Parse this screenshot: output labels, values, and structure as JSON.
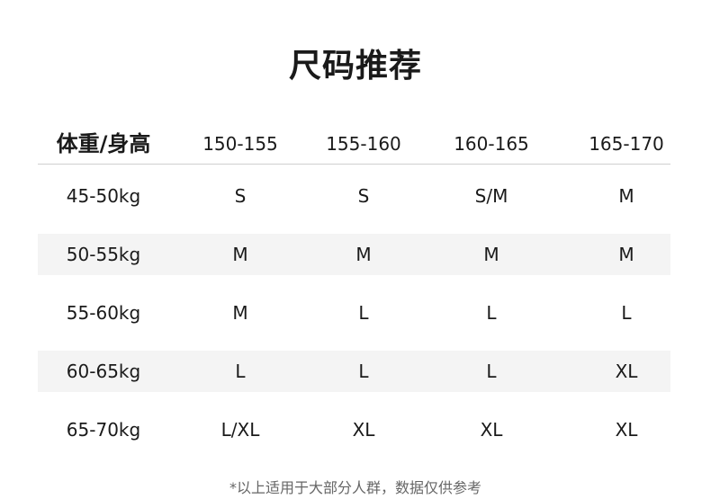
{
  "title": "尺码推荐",
  "table": {
    "header": [
      "体重/身高",
      "150-155",
      "155-160",
      "160-165",
      "165-170"
    ],
    "rows": [
      [
        "45-50kg",
        "S",
        "S",
        "S/M",
        "M"
      ],
      [
        "50-55kg",
        "M",
        "M",
        "M",
        "M"
      ],
      [
        "55-60kg",
        "M",
        "L",
        "L",
        "L"
      ],
      [
        "60-65kg",
        "L",
        "L",
        "L",
        "XL"
      ],
      [
        "65-70kg",
        "L/XL",
        "XL",
        "XL",
        "XL"
      ]
    ]
  },
  "footnote": "*以上适用于大部分人群，数据仅供参考",
  "colors": {
    "stripe": "#f4f4f4",
    "text": "#1a1a1a",
    "note": "#666666"
  }
}
